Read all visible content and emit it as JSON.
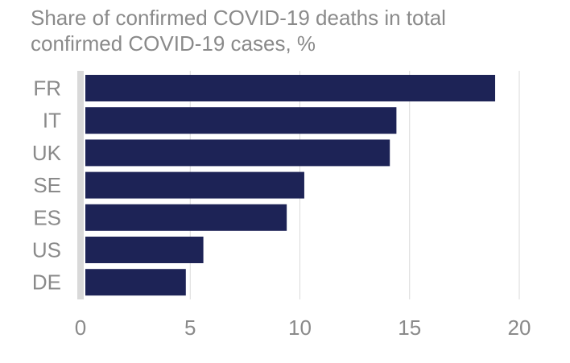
{
  "title_lines": [
    "Share of confirmed COVID-19 deaths in total",
    "confirmed COVID-19 cases, %"
  ],
  "colors": {
    "bar": "#1d2356",
    "grid": "#d9d9d9",
    "axis": "#d9d9d9",
    "label": "#8a8a8a",
    "tick": "#8a8a8a"
  },
  "chart_data": {
    "type": "bar",
    "orientation": "horizontal",
    "title": "Share of confirmed COVID-19 deaths in total confirmed COVID-19 cases, %",
    "categories": [
      "FR",
      "IT",
      "UK",
      "SE",
      "ES",
      "US",
      "DE"
    ],
    "values": [
      18.9,
      14.4,
      14.1,
      10.2,
      9.4,
      5.6,
      4.8
    ],
    "xlim": [
      0,
      20
    ],
    "xticks": [
      "0",
      "5",
      "10",
      "15",
      "20"
    ],
    "xtick_values": [
      0,
      5,
      10,
      15,
      20
    ],
    "grid": true,
    "legend": "none"
  }
}
